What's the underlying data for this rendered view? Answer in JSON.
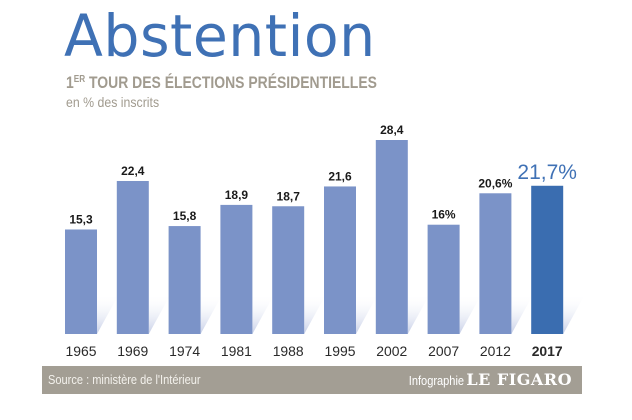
{
  "header": {
    "title": "Abstention",
    "subtitle_prefix": "1",
    "subtitle_sup": "ER",
    "subtitle_rest": " TOUR DES ÉLECTIONS PRÉSIDENTIELLES",
    "unit_note": "en % des inscrits"
  },
  "footer": {
    "source": "Source : ministère de l'Intérieur",
    "credit_label": "Infographie",
    "credit_brand": "LE FIGARO"
  },
  "colors": {
    "bar": "#7b93c8",
    "highlight_bar": "#3a6db0",
    "highlight_label": "#3f71b5",
    "label": "#1a1a1a",
    "title": "#3f71b5",
    "footer_band": "#a39e94"
  },
  "chart_data": {
    "type": "bar",
    "title": "Abstention",
    "subtitle": "1er tour des élections présidentielles",
    "ylabel": "en % des inscrits",
    "xlabel": "",
    "categories": [
      "1965",
      "1969",
      "1974",
      "1981",
      "1988",
      "1995",
      "2002",
      "2007",
      "2012",
      "2017"
    ],
    "values": [
      15.3,
      22.4,
      15.8,
      18.9,
      18.7,
      21.6,
      28.4,
      16.0,
      20.6,
      21.7
    ],
    "data_labels": [
      "15,3",
      "22,4",
      "15,8",
      "18,9",
      "18,7",
      "21,6",
      "28,4",
      "16%",
      "20,6%",
      "21,7%"
    ],
    "highlight_index": 9,
    "ylim": [
      0,
      28.4
    ],
    "grid": false,
    "legend": "none"
  }
}
